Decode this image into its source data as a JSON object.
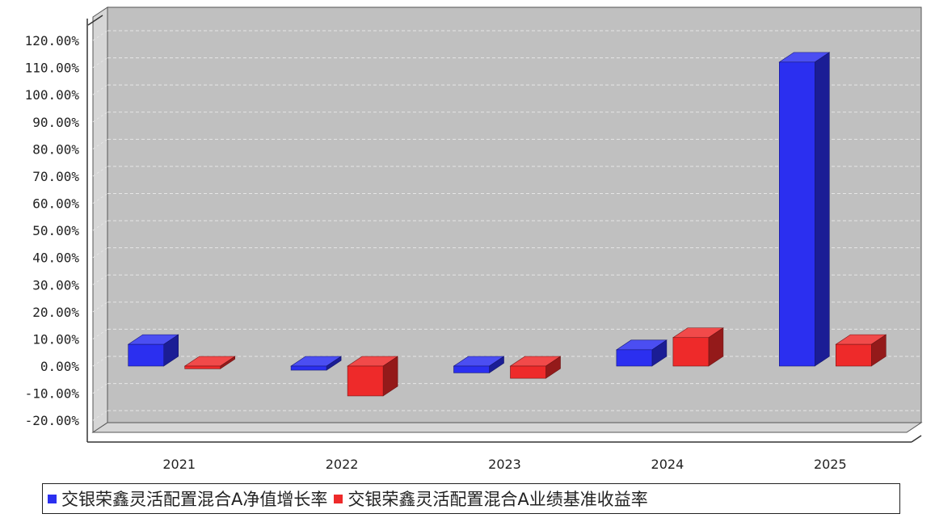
{
  "chart_data": {
    "type": "bar",
    "categories": [
      "2021",
      "2022",
      "2023",
      "2024",
      "2025"
    ],
    "series": [
      {
        "name": "交银荣鑫灵活配置混合A净值增长率",
        "color": "#2b2ff0",
        "values": [
          8.0,
          -1.5,
          -2.5,
          6.0,
          112.0
        ]
      },
      {
        "name": "交银荣鑫灵活配置混合A业绩基准收益率",
        "color": "#ee2a2a",
        "values": [
          -1.0,
          -11.0,
          -4.5,
          10.5,
          8.0
        ]
      }
    ],
    "y_ticks": [
      "-20.00%",
      "-10.00%",
      "0.00%",
      "10.00%",
      "20.00%",
      "30.00%",
      "40.00%",
      "50.00%",
      "60.00%",
      "70.00%",
      "80.00%",
      "90.00%",
      "100.00%",
      "110.00%",
      "120.00%"
    ],
    "ylim": [
      -20,
      120
    ],
    "grid": true,
    "legend_position": "bottom",
    "plot_background": "#c0c0c0"
  }
}
